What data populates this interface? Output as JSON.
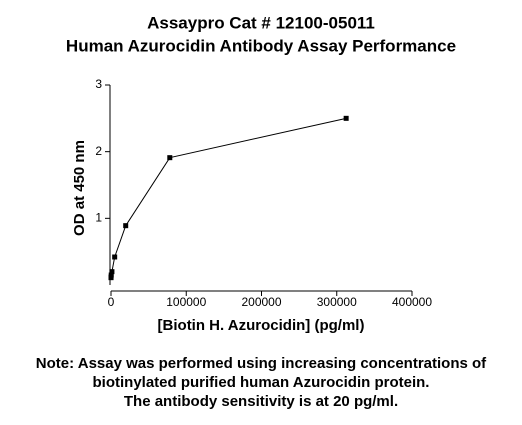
{
  "chart_data": {
    "type": "line",
    "title": "Assaypro Cat # 12100-05011",
    "subtitle": "Human Azurocidin Antibody Assay Performance",
    "x_label": "[Biotin H. Azurocidin] (pg/ml)",
    "y_label": "OD at 450 nm",
    "note": [
      "Note: Assay was performed using increasing concentrations of",
      "biotinylated purified human Azurocidin protein.",
      "The antibody sensitivity is at 20 pg/ml."
    ],
    "x": [
      19,
      76,
      305,
      1221,
      4883,
      19531,
      78125,
      312500
    ],
    "series": [
      {
        "name": "OD",
        "color": "#000000",
        "values": [
          0.11,
          0.12,
          0.15,
          0.2,
          0.42,
          0.89,
          1.91,
          2.5
        ]
      }
    ],
    "xlim": [
      0,
      400000
    ],
    "xticks": [
      0,
      100000,
      200000,
      300000,
      400000
    ],
    "ylim": [
      0,
      3
    ],
    "yticks": [
      1,
      2,
      3
    ]
  }
}
